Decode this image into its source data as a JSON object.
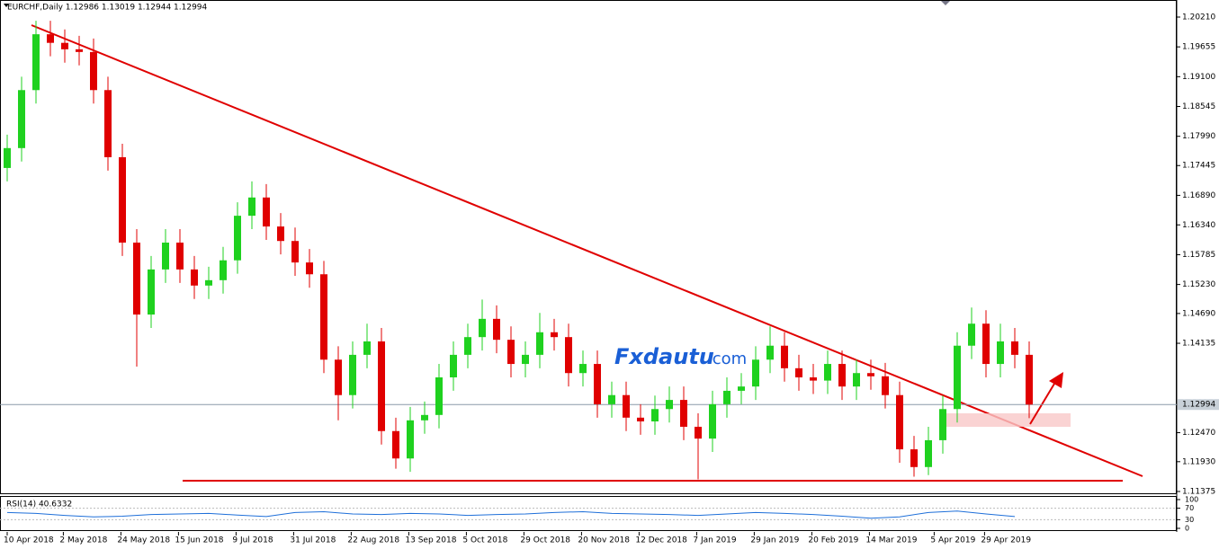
{
  "chart_data": [
    {
      "type": "candlestick",
      "title": "EURCHF,Daily  1.12986 1.13019 1.12944 1.12994",
      "watermark": [
        "Fxdautu",
        ".com"
      ],
      "up_color": "#1fd11f",
      "down_color": "#e00000",
      "categories": [
        null,
        null,
        null,
        null,
        null,
        null,
        null,
        null,
        null,
        null,
        null,
        null,
        null,
        null,
        null,
        null,
        null,
        null,
        null,
        null,
        null,
        null,
        null,
        null,
        null,
        null,
        null,
        null,
        null,
        null,
        null,
        null,
        null,
        null,
        null,
        null,
        null,
        null,
        null,
        null,
        null,
        null,
        null,
        null,
        null,
        null,
        null,
        null,
        null,
        null,
        null,
        null,
        null,
        null,
        null,
        null,
        null,
        null,
        null,
        null,
        null,
        null,
        null,
        null,
        null,
        null,
        null,
        null,
        null,
        null,
        null,
        null
      ],
      "open": [
        1.174,
        1.1777,
        1.1885,
        1.1989,
        1.1973,
        1.1961,
        1.1956,
        1.1885,
        1.176,
        1.1601,
        1.1467,
        1.1551,
        1.1601,
        1.1551,
        1.1521,
        1.1531,
        1.1568,
        1.1651,
        1.1685,
        1.1631,
        1.1604,
        1.1564,
        1.1542,
        1.1383,
        1.1317,
        1.1392,
        1.1417,
        1.125,
        1.1199,
        1.127,
        1.128,
        1.135,
        1.1392,
        1.1425,
        1.1459,
        1.142,
        1.1375,
        1.1392,
        1.1434,
        1.1425,
        1.1358,
        1.1375,
        1.13,
        1.1317,
        1.1275,
        1.1268,
        1.1291,
        1.1308,
        1.1258,
        1.1236,
        1.13,
        1.1325,
        1.1333,
        1.1383,
        1.1409,
        1.1367,
        1.135,
        1.1344,
        1.1375,
        1.1333,
        1.1358,
        1.1352,
        1.1317,
        1.1216,
        1.1183,
        1.1233,
        1.1291,
        1.1409,
        1.145,
        1.1375,
        1.1417,
        1.1392
      ],
      "high": [
        1.1802,
        1.191,
        1.2014,
        1.2014,
        1.1998,
        1.1986,
        1.1981,
        1.191,
        1.1785,
        1.1626,
        1.1576,
        1.1626,
        1.1626,
        1.1576,
        1.1556,
        1.1593,
        1.1676,
        1.1715,
        1.171,
        1.1656,
        1.1629,
        1.1589,
        1.1567,
        1.1408,
        1.1417,
        1.145,
        1.1442,
        1.1275,
        1.1295,
        1.1305,
        1.1375,
        1.1417,
        1.145,
        1.1495,
        1.1484,
        1.1445,
        1.1417,
        1.147,
        1.1459,
        1.145,
        1.14,
        1.14,
        1.1342,
        1.1342,
        1.13,
        1.1316,
        1.1333,
        1.1333,
        1.1283,
        1.1325,
        1.135,
        1.1358,
        1.1408,
        1.1445,
        1.1434,
        1.1392,
        1.1375,
        1.14,
        1.14,
        1.1383,
        1.1383,
        1.1377,
        1.1342,
        1.1241,
        1.1258,
        1.1316,
        1.1434,
        1.148,
        1.1475,
        1.145,
        1.1442,
        1.1417
      ],
      "low": [
        1.1715,
        1.1752,
        1.186,
        1.1948,
        1.1936,
        1.1931,
        1.186,
        1.1735,
        1.1576,
        1.137,
        1.1442,
        1.1526,
        1.1526,
        1.1496,
        1.1496,
        1.1506,
        1.1543,
        1.1626,
        1.1606,
        1.1579,
        1.1539,
        1.1517,
        1.1358,
        1.127,
        1.1292,
        1.1367,
        1.1225,
        1.118,
        1.1174,
        1.1245,
        1.1255,
        1.1325,
        1.1367,
        1.14,
        1.1395,
        1.135,
        1.135,
        1.1367,
        1.14,
        1.1333,
        1.1333,
        1.1275,
        1.1275,
        1.125,
        1.1243,
        1.1243,
        1.1266,
        1.1233,
        1.116,
        1.1211,
        1.1275,
        1.13,
        1.1308,
        1.1358,
        1.1342,
        1.1325,
        1.1319,
        1.1319,
        1.1308,
        1.1308,
        1.1327,
        1.1292,
        1.1191,
        1.1165,
        1.1168,
        1.1208,
        1.1266,
        1.1384,
        1.135,
        1.135,
        1.1367,
        1.1274
      ],
      "close": [
        1.1777,
        1.1885,
        1.1989,
        1.1973,
        1.1961,
        1.1956,
        1.1885,
        1.176,
        1.1601,
        1.1467,
        1.1551,
        1.1601,
        1.1551,
        1.1521,
        1.1531,
        1.1568,
        1.1651,
        1.1685,
        1.1631,
        1.1604,
        1.1564,
        1.1542,
        1.1383,
        1.1317,
        1.1392,
        1.1417,
        1.125,
        1.1199,
        1.127,
        1.128,
        1.135,
        1.1392,
        1.1425,
        1.1459,
        1.142,
        1.1375,
        1.1392,
        1.1434,
        1.1425,
        1.1358,
        1.1375,
        1.13,
        1.1317,
        1.1275,
        1.1268,
        1.1291,
        1.1308,
        1.1258,
        1.1236,
        1.13,
        1.1325,
        1.1333,
        1.1383,
        1.1409,
        1.1367,
        1.135,
        1.1344,
        1.1375,
        1.1333,
        1.1358,
        1.1352,
        1.1317,
        1.1216,
        1.1183,
        1.1233,
        1.1291,
        1.1409,
        1.145,
        1.1375,
        1.1417,
        1.1392,
        1.12994
      ],
      "price_line": {
        "value": 1.12994,
        "label": "1.12994"
      },
      "ylim": [
        1.11358,
        1.20528
      ],
      "yticks": [
        {
          "value": 1.2021,
          "label": "1.20210"
        },
        1.19655,
        {
          "value": 1.191,
          "label": "1.19100"
        },
        1.18545,
        {
          "value": 1.1799,
          "label": "1.17990"
        },
        1.17445,
        {
          "value": 1.1689,
          "label": "1.16890"
        },
        {
          "value": 1.1634,
          "label": "1.16340"
        },
        1.15785,
        {
          "value": 1.1523,
          "label": "1.15230"
        },
        {
          "value": 1.1469,
          "label": "1.14690"
        },
        1.14135,
        {
          "value": 1.1247,
          "label": "1.12470"
        },
        {
          "value": 1.1193,
          "label": "1.11930"
        },
        1.11375
      ],
      "xticks": [
        {
          "value": 0,
          "label": "10 Apr 2018"
        },
        {
          "value": 3.9,
          "label": "2 May 2018"
        },
        {
          "value": 7.9,
          "label": "24 May 2018"
        },
        {
          "value": 11.9,
          "label": "15 Jun 2018"
        },
        {
          "value": 15.9,
          "label": "9 Jul 2018"
        },
        {
          "value": 19.9,
          "label": "31 Jul 2018"
        },
        {
          "value": 23.9,
          "label": "22 Aug 2018"
        },
        {
          "value": 27.9,
          "label": "13 Sep 2018"
        },
        {
          "value": 31.9,
          "label": "5 Oct 2018"
        },
        {
          "value": 35.9,
          "label": "29 Oct 2018"
        },
        {
          "value": 39.9,
          "label": "20 Nov 2018"
        },
        {
          "value": 43.9,
          "label": "12 Dec 2018"
        },
        {
          "value": 47.9,
          "label": "7 Jan 2019"
        },
        {
          "value": 51.9,
          "label": "29 Jan 2019"
        },
        {
          "value": 55.9,
          "label": "20 Feb 2019"
        },
        {
          "value": 59.9,
          "label": "14 Mar 2019"
        },
        {
          "value": 64.4,
          "label": "5 Apr 2019"
        },
        {
          "value": 67.9,
          "label": "29 Apr 2019"
        }
      ]
    },
    {
      "type": "line",
      "title": "RSI(14) 40.6332",
      "color": "#1e6fd9",
      "values": [
        55,
        52,
        45,
        40,
        42,
        48,
        50,
        52,
        46,
        41,
        55,
        58,
        50,
        48,
        52,
        50,
        45,
        48,
        50,
        55,
        58,
        52,
        50,
        48,
        45,
        50,
        55,
        52,
        48,
        42,
        35,
        40,
        55,
        60,
        50,
        41
      ],
      "ylim": [
        0,
        100
      ],
      "yticks": [
        100,
        70,
        30,
        0
      ]
    }
  ]
}
